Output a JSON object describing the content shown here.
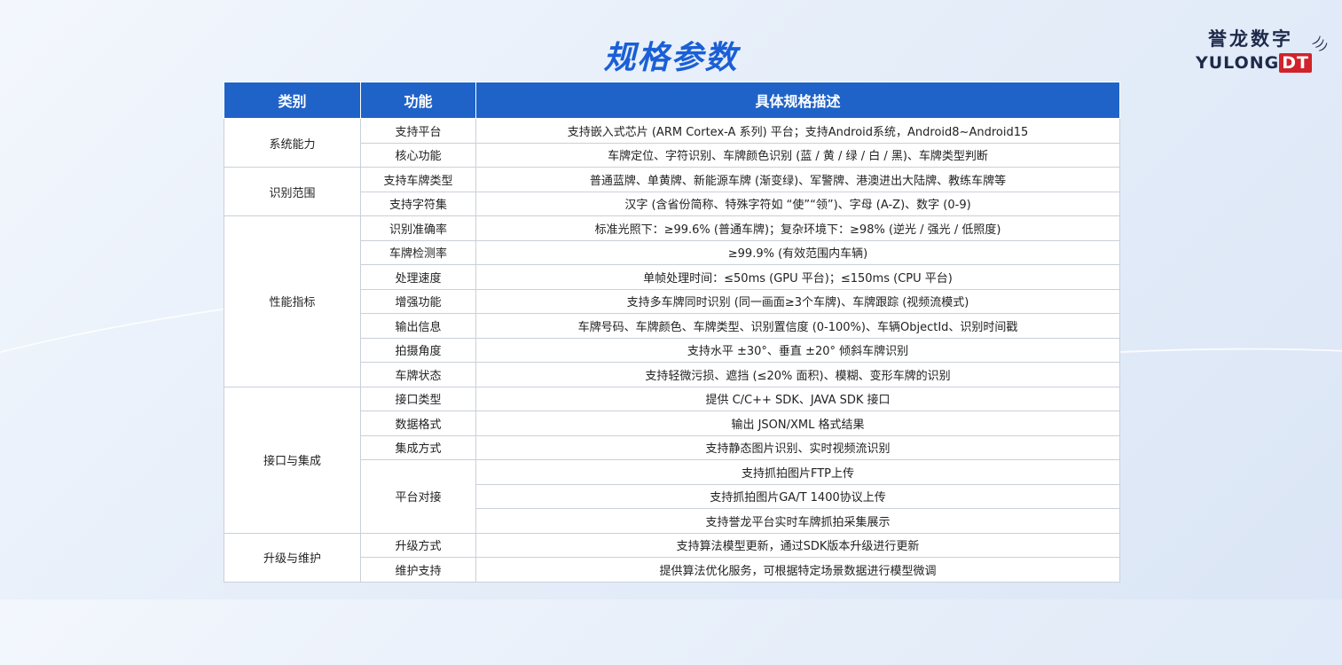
{
  "title": "规格参数",
  "logo": {
    "cn": "誉龙数字",
    "en_main": "YULONG",
    "en_badge": "DT"
  },
  "headers": [
    "类别",
    "功能",
    "具体规格描述"
  ],
  "groups": [
    {
      "category": "系统能力",
      "functions": [
        {
          "name": "支持平台",
          "descs": [
            "支持嵌入式芯片 (ARM Cortex-A 系列) 平台；支持Android系统，Android8~Android15"
          ]
        },
        {
          "name": "核心功能",
          "descs": [
            "车牌定位、字符识别、车牌颜色识别 (蓝 / 黄 / 绿 / 白 / 黑)、车牌类型判断"
          ]
        }
      ]
    },
    {
      "category": "识别范围",
      "functions": [
        {
          "name": "支持车牌类型",
          "descs": [
            "普通蓝牌、单黄牌、新能源车牌 (渐变绿)、军警牌、港澳进出大陆牌、教练车牌等"
          ]
        },
        {
          "name": "支持字符集",
          "descs": [
            "汉字 (含省份简称、特殊字符如 “使”“领”)、字母 (A-Z)、数字 (0-9)"
          ]
        }
      ]
    },
    {
      "category": "性能指标",
      "functions": [
        {
          "name": "识别准确率",
          "descs": [
            "标准光照下：≥99.6% (普通车牌)；复杂环境下：≥98% (逆光 / 强光 / 低照度)"
          ]
        },
        {
          "name": "车牌检测率",
          "descs": [
            "≥99.9% (有效范围内车辆)"
          ]
        },
        {
          "name": "处理速度",
          "descs": [
            "单帧处理时间：≤50ms (GPU 平台)；≤150ms (CPU 平台)"
          ]
        },
        {
          "name": "增强功能",
          "descs": [
            "支持多车牌同时识别 (同一画面≥3个车牌)、车牌跟踪 (视频流模式)"
          ]
        },
        {
          "name": "输出信息",
          "descs": [
            "车牌号码、车牌颜色、车牌类型、识别置信度 (0-100%)、车辆ObjectId、识别时间戳"
          ]
        },
        {
          "name": "拍摄角度",
          "descs": [
            "支持水平 ±30°、垂直 ±20° 倾斜车牌识别"
          ]
        },
        {
          "name": "车牌状态",
          "descs": [
            "支持轻微污损、遮挡 (≤20% 面积)、模糊、变形车牌的识别"
          ]
        }
      ]
    },
    {
      "category": "接口与集成",
      "functions": [
        {
          "name": "接口类型",
          "descs": [
            "提供 C/C++ SDK、JAVA SDK 接口"
          ]
        },
        {
          "name": "数据格式",
          "descs": [
            "输出 JSON/XML 格式结果"
          ]
        },
        {
          "name": "集成方式",
          "descs": [
            "支持静态图片识别、实时视频流识别"
          ]
        },
        {
          "name": "平台对接",
          "descs": [
            "支持抓拍图片FTP上传",
            "支持抓拍图片GA/T 1400协议上传",
            "支持誉龙平台实时车牌抓拍采集展示"
          ]
        }
      ]
    },
    {
      "category": "升级与维护",
      "functions": [
        {
          "name": "升级方式",
          "descs": [
            "支持算法模型更新，通过SDK版本升级进行更新"
          ]
        },
        {
          "name": "维护支持",
          "descs": [
            "提供算法优化服务，可根据特定场景数据进行模型微调"
          ]
        }
      ]
    }
  ]
}
